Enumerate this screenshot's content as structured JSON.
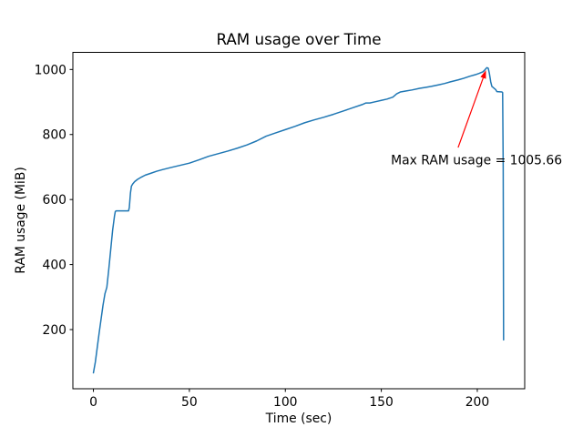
{
  "figure": {
    "background": "#ffffff"
  },
  "chart_data": {
    "type": "line",
    "title": "RAM usage over Time",
    "xlabel": "Time (sec)",
    "ylabel": "RAM usage (MiB)",
    "xlim": [
      -10.7,
      224.7
    ],
    "ylim": [
      18,
      1052.7
    ],
    "x_ticks": [
      0,
      50,
      100,
      150,
      200
    ],
    "y_ticks": [
      200,
      400,
      600,
      800,
      1000
    ],
    "grid": false,
    "legend": "none",
    "line_color": "#1f77b4",
    "spine_color": "#000000",
    "annotation": {
      "text": "Max RAM usage = 1005.66",
      "color": "#ff0000",
      "point": [
        205,
        1005.66
      ],
      "text_pos": [
        155,
        708
      ],
      "arrow_tail": [
        190,
        760
      ]
    },
    "max_value": 1005.66,
    "series": [
      {
        "name": "RAM usage",
        "points": [
          [
            0,
            67
          ],
          [
            1,
            100
          ],
          [
            3,
            190
          ],
          [
            5,
            275
          ],
          [
            6,
            310
          ],
          [
            7,
            330
          ],
          [
            8,
            385
          ],
          [
            9,
            445
          ],
          [
            10,
            505
          ],
          [
            11,
            550
          ],
          [
            11.4,
            563
          ],
          [
            11.8,
            565
          ],
          [
            18.3,
            565
          ],
          [
            18.7,
            575
          ],
          [
            19.3,
            620
          ],
          [
            19.8,
            641
          ],
          [
            20.5,
            648
          ],
          [
            21.5,
            655
          ],
          [
            23,
            662
          ],
          [
            25,
            669
          ],
          [
            27,
            675
          ],
          [
            30,
            681
          ],
          [
            33,
            687
          ],
          [
            36,
            692
          ],
          [
            40,
            698
          ],
          [
            45,
            705
          ],
          [
            50,
            712
          ],
          [
            55,
            722
          ],
          [
            60,
            733
          ],
          [
            65,
            741
          ],
          [
            70,
            749
          ],
          [
            75,
            758
          ],
          [
            80,
            768
          ],
          [
            85,
            780
          ],
          [
            90,
            795
          ],
          [
            95,
            805
          ],
          [
            100,
            815
          ],
          [
            105,
            825
          ],
          [
            110,
            836
          ],
          [
            115,
            845
          ],
          [
            120,
            853
          ],
          [
            125,
            862
          ],
          [
            130,
            872
          ],
          [
            135,
            882
          ],
          [
            140,
            892
          ],
          [
            142,
            897
          ],
          [
            144,
            897
          ],
          [
            147,
            901
          ],
          [
            150,
            905
          ],
          [
            153,
            909
          ],
          [
            156,
            915
          ],
          [
            158,
            925
          ],
          [
            160,
            931
          ],
          [
            163,
            934
          ],
          [
            166,
            937
          ],
          [
            170,
            942
          ],
          [
            173,
            945
          ],
          [
            176,
            948
          ],
          [
            180,
            953
          ],
          [
            183,
            957
          ],
          [
            186,
            962
          ],
          [
            190,
            968
          ],
          [
            193,
            973
          ],
          [
            196,
            979
          ],
          [
            199,
            984
          ],
          [
            201,
            988
          ],
          [
            203,
            993
          ],
          [
            204,
            999
          ],
          [
            205,
            1005.66
          ],
          [
            205.7,
            1004
          ],
          [
            206.3,
            988
          ],
          [
            207,
            962
          ],
          [
            207.6,
            948
          ],
          [
            208.2,
            945
          ],
          [
            209,
            941
          ],
          [
            209.6,
            938
          ],
          [
            210.2,
            932
          ],
          [
            212.8,
            931
          ],
          [
            213.2,
            929
          ],
          [
            213.5,
            700
          ],
          [
            213.7,
            168
          ]
        ]
      }
    ]
  }
}
